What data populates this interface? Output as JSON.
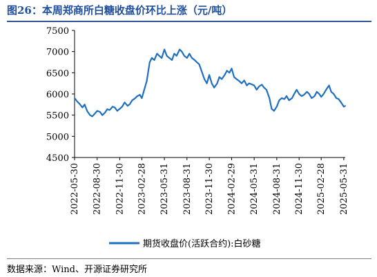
{
  "header": {
    "title": "图26：本周郑商所白糖收盘价环比上涨（元/吨）"
  },
  "footer": {
    "source": "数据来源：Wind、开源证券研究所"
  },
  "colors": {
    "series": "#1f6fc0",
    "title": "#1f4e9c",
    "axis": "#000000"
  },
  "chart_data": {
    "type": "line",
    "title": "本周郑商所白糖收盘价环比上涨（元/吨）",
    "ylim": [
      4500,
      7500
    ],
    "yticks": [
      4500,
      5000,
      5500,
      6000,
      6500,
      7000,
      7500
    ],
    "xlim": [
      "2022-05-30",
      "2025-06-06"
    ],
    "xticks": [
      "2022-05-30",
      "2022-08-30",
      "2022-11-30",
      "2023-02-28",
      "2023-05-31",
      "2023-08-31",
      "2023-11-30",
      "2024-02-29",
      "2024-05-31",
      "2024-08-31",
      "2024-11-30",
      "2025-02-28",
      "2025-05-31"
    ],
    "grid": false,
    "legend_position": "bottom",
    "series": [
      {
        "name": "期货收盘价(活跃合约):白砂糖",
        "x": [
          "2022-05-30",
          "2022-06-10",
          "2022-06-20",
          "2022-07-01",
          "2022-07-10",
          "2022-07-20",
          "2022-08-01",
          "2022-08-10",
          "2022-08-20",
          "2022-08-30",
          "2022-09-10",
          "2022-09-20",
          "2022-10-01",
          "2022-10-10",
          "2022-10-20",
          "2022-11-01",
          "2022-11-10",
          "2022-11-20",
          "2022-11-30",
          "2022-12-10",
          "2022-12-20",
          "2023-01-01",
          "2023-01-10",
          "2023-01-20",
          "2023-02-01",
          "2023-02-10",
          "2023-02-20",
          "2023-02-28",
          "2023-03-10",
          "2023-03-20",
          "2023-04-01",
          "2023-04-10",
          "2023-04-20",
          "2023-05-01",
          "2023-05-10",
          "2023-05-20",
          "2023-05-31",
          "2023-06-10",
          "2023-06-20",
          "2023-07-01",
          "2023-07-10",
          "2023-07-20",
          "2023-08-01",
          "2023-08-10",
          "2023-08-20",
          "2023-08-31",
          "2023-09-10",
          "2023-09-20",
          "2023-10-01",
          "2023-10-10",
          "2023-10-20",
          "2023-11-01",
          "2023-11-10",
          "2023-11-20",
          "2023-11-30",
          "2023-12-10",
          "2023-12-20",
          "2024-01-01",
          "2024-01-10",
          "2024-01-20",
          "2024-02-01",
          "2024-02-10",
          "2024-02-20",
          "2024-02-29",
          "2024-03-10",
          "2024-03-20",
          "2024-04-01",
          "2024-04-10",
          "2024-04-20",
          "2024-05-01",
          "2024-05-10",
          "2024-05-20",
          "2024-05-31",
          "2024-06-10",
          "2024-06-20",
          "2024-07-01",
          "2024-07-10",
          "2024-07-20",
          "2024-08-01",
          "2024-08-10",
          "2024-08-20",
          "2024-08-31",
          "2024-09-10",
          "2024-09-20",
          "2024-10-01",
          "2024-10-10",
          "2024-10-20",
          "2024-11-01",
          "2024-11-10",
          "2024-11-20",
          "2024-11-30",
          "2024-12-10",
          "2024-12-20",
          "2025-01-01",
          "2025-01-10",
          "2025-01-20",
          "2025-02-01",
          "2025-02-10",
          "2025-02-20",
          "2025-02-28",
          "2025-03-10",
          "2025-03-20",
          "2025-04-01",
          "2025-04-10",
          "2025-04-20",
          "2025-05-01",
          "2025-05-10",
          "2025-05-20",
          "2025-05-31",
          "2025-06-06"
        ],
        "values": [
          5900,
          5820,
          5760,
          5680,
          5750,
          5600,
          5500,
          5470,
          5530,
          5600,
          5580,
          5500,
          5560,
          5640,
          5620,
          5700,
          5680,
          5600,
          5650,
          5700,
          5800,
          5720,
          5760,
          5850,
          5900,
          5950,
          5980,
          5900,
          6100,
          6300,
          6750,
          6850,
          6800,
          6950,
          6900,
          6850,
          7050,
          6900,
          6850,
          6800,
          6950,
          6900,
          7050,
          7000,
          6900,
          6850,
          6950,
          6850,
          6800,
          6750,
          6700,
          6500,
          6350,
          6250,
          6450,
          6250,
          6150,
          6250,
          6400,
          6350,
          6450,
          6550,
          6500,
          6600,
          6400,
          6350,
          6300,
          6250,
          6320,
          6200,
          6250,
          6230,
          6200,
          6100,
          6180,
          6220,
          6150,
          6100,
          5900,
          5650,
          5600,
          5700,
          5850,
          5900,
          5880,
          5950,
          5850,
          5900,
          6000,
          6100,
          6000,
          5950,
          5980,
          6050,
          6000,
          5900,
          5950,
          6050,
          6000,
          5930,
          6000,
          6100,
          6200,
          6050,
          6000,
          5900,
          5880,
          5800,
          5700,
          5720
        ]
      }
    ]
  }
}
